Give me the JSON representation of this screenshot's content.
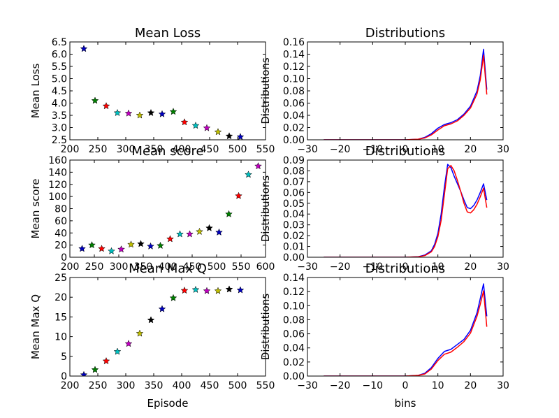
{
  "chart_data": [
    {
      "type": "scatter",
      "title": "Mean Loss",
      "xlabel": "",
      "ylabel": "Mean Loss",
      "xlim": [
        200,
        550
      ],
      "ylim": [
        2.5,
        6.5
      ],
      "xticks": [
        200,
        250,
        300,
        350,
        400,
        450,
        500,
        550
      ],
      "yticks": [
        2.5,
        3.0,
        3.5,
        4.0,
        4.5,
        5.0,
        5.5,
        6.0,
        6.5
      ],
      "ytick_decimals": 1,
      "marker": "star",
      "points": [
        {
          "x": 225,
          "y": 6.22,
          "color": "#0000bf"
        },
        {
          "x": 245,
          "y": 4.1,
          "color": "#007f00"
        },
        {
          "x": 265,
          "y": 3.88,
          "color": "#ff0000"
        },
        {
          "x": 285,
          "y": 3.6,
          "color": "#00bfbf"
        },
        {
          "x": 305,
          "y": 3.58,
          "color": "#bf00bf"
        },
        {
          "x": 325,
          "y": 3.5,
          "color": "#bfbf00"
        },
        {
          "x": 345,
          "y": 3.6,
          "color": "#000000"
        },
        {
          "x": 365,
          "y": 3.55,
          "color": "#0000bf"
        },
        {
          "x": 385,
          "y": 3.65,
          "color": "#007f00"
        },
        {
          "x": 405,
          "y": 3.22,
          "color": "#ff0000"
        },
        {
          "x": 425,
          "y": 3.08,
          "color": "#00bfbf"
        },
        {
          "x": 445,
          "y": 2.98,
          "color": "#bf00bf"
        },
        {
          "x": 465,
          "y": 2.82,
          "color": "#bfbf00"
        },
        {
          "x": 485,
          "y": 2.65,
          "color": "#000000"
        },
        {
          "x": 505,
          "y": 2.62,
          "color": "#0000bf"
        }
      ]
    },
    {
      "type": "line",
      "title": "Distributions",
      "xlabel": "",
      "ylabel": "Distributions",
      "xlim": [
        -30,
        30
      ],
      "ylim": [
        0,
        0.16
      ],
      "xticks": [
        -30,
        -20,
        -10,
        0,
        10,
        20,
        30
      ],
      "yticks": [
        0,
        0.02,
        0.04,
        0.06,
        0.08,
        0.1,
        0.12,
        0.14,
        0.16
      ],
      "ytick_decimals": 2,
      "series": [
        {
          "color": "#0000ff",
          "x": [
            -25,
            0,
            4,
            6,
            8,
            10,
            12,
            14,
            16,
            18,
            20,
            22,
            23,
            24,
            25
          ],
          "y": [
            0,
            0,
            0.001,
            0.004,
            0.01,
            0.019,
            0.025,
            0.028,
            0.033,
            0.042,
            0.055,
            0.08,
            0.105,
            0.148,
            0.082
          ]
        },
        {
          "color": "#ff0000",
          "x": [
            -25,
            0,
            4,
            6,
            8,
            10,
            12,
            14,
            16,
            18,
            20,
            22,
            23,
            24,
            25
          ],
          "y": [
            0,
            0,
            0.001,
            0.003,
            0.008,
            0.016,
            0.023,
            0.026,
            0.031,
            0.04,
            0.052,
            0.075,
            0.098,
            0.138,
            0.074
          ]
        }
      ]
    },
    {
      "type": "scatter",
      "title": "Mean score",
      "xlabel": "",
      "ylabel": "Mean score",
      "xlim": [
        200,
        600
      ],
      "ylim": [
        0,
        160
      ],
      "xticks": [
        200,
        250,
        300,
        350,
        400,
        450,
        500,
        550,
        600
      ],
      "yticks": [
        0,
        20,
        40,
        60,
        80,
        100,
        120,
        140,
        160
      ],
      "ytick_decimals": 0,
      "marker": "star",
      "points": [
        {
          "x": 225,
          "y": 14,
          "color": "#0000bf"
        },
        {
          "x": 245,
          "y": 20,
          "color": "#007f00"
        },
        {
          "x": 265,
          "y": 14,
          "color": "#ff0000"
        },
        {
          "x": 285,
          "y": 10,
          "color": "#00bfbf"
        },
        {
          "x": 305,
          "y": 13,
          "color": "#bf00bf"
        },
        {
          "x": 325,
          "y": 21,
          "color": "#bfbf00"
        },
        {
          "x": 345,
          "y": 22,
          "color": "#000000"
        },
        {
          "x": 365,
          "y": 18,
          "color": "#0000bf"
        },
        {
          "x": 385,
          "y": 19,
          "color": "#007f00"
        },
        {
          "x": 405,
          "y": 30,
          "color": "#ff0000"
        },
        {
          "x": 425,
          "y": 38,
          "color": "#00bfbf"
        },
        {
          "x": 445,
          "y": 38,
          "color": "#bf00bf"
        },
        {
          "x": 465,
          "y": 42,
          "color": "#bfbf00"
        },
        {
          "x": 485,
          "y": 48,
          "color": "#000000"
        },
        {
          "x": 505,
          "y": 41,
          "color": "#0000bf"
        },
        {
          "x": 525,
          "y": 71,
          "color": "#007f00"
        },
        {
          "x": 545,
          "y": 101,
          "color": "#ff0000"
        },
        {
          "x": 565,
          "y": 136,
          "color": "#00bfbf"
        },
        {
          "x": 585,
          "y": 150,
          "color": "#bf00bf"
        }
      ]
    },
    {
      "type": "line",
      "title": "Distributions",
      "xlabel": "",
      "ylabel": "Distributions",
      "xlim": [
        -30,
        30
      ],
      "ylim": [
        0,
        0.09
      ],
      "xticks": [
        -30,
        -20,
        -10,
        0,
        10,
        20,
        30
      ],
      "yticks": [
        0,
        0.01,
        0.02,
        0.03,
        0.04,
        0.05,
        0.06,
        0.07,
        0.08,
        0.09
      ],
      "ytick_decimals": 2,
      "series": [
        {
          "color": "#0000ff",
          "x": [
            -25,
            0,
            4,
            6,
            8,
            9,
            10,
            11,
            12,
            13,
            14,
            15,
            16,
            17,
            18,
            19,
            20,
            21,
            22,
            23,
            24,
            25
          ],
          "y": [
            0,
            0,
            0.0005,
            0.002,
            0.006,
            0.012,
            0.022,
            0.04,
            0.065,
            0.086,
            0.083,
            0.075,
            0.068,
            0.061,
            0.053,
            0.046,
            0.045,
            0.048,
            0.053,
            0.06,
            0.068,
            0.053
          ]
        },
        {
          "color": "#ff0000",
          "x": [
            -25,
            0,
            4,
            6,
            8,
            9,
            10,
            11,
            12,
            13,
            14,
            15,
            16,
            17,
            18,
            19,
            20,
            21,
            22,
            23,
            24,
            25
          ],
          "y": [
            0,
            0,
            0.0004,
            0.0015,
            0.005,
            0.01,
            0.019,
            0.034,
            0.058,
            0.082,
            0.085,
            0.08,
            0.071,
            0.061,
            0.05,
            0.042,
            0.041,
            0.044,
            0.049,
            0.056,
            0.064,
            0.046
          ]
        }
      ]
    },
    {
      "type": "scatter",
      "title": "Mean Max Q",
      "xlabel": "Episode",
      "ylabel": "Mean Max Q",
      "xlim": [
        200,
        550
      ],
      "ylim": [
        0,
        25
      ],
      "xticks": [
        200,
        250,
        300,
        350,
        400,
        450,
        500,
        550
      ],
      "yticks": [
        0,
        5,
        10,
        15,
        20,
        25
      ],
      "ytick_decimals": 0,
      "marker": "star",
      "points": [
        {
          "x": 225,
          "y": 0.3,
          "color": "#0000bf"
        },
        {
          "x": 245,
          "y": 1.6,
          "color": "#007f00"
        },
        {
          "x": 265,
          "y": 3.8,
          "color": "#ff0000"
        },
        {
          "x": 285,
          "y": 6.2,
          "color": "#00bfbf"
        },
        {
          "x": 305,
          "y": 8.2,
          "color": "#bf00bf"
        },
        {
          "x": 325,
          "y": 10.8,
          "color": "#bfbf00"
        },
        {
          "x": 345,
          "y": 14.2,
          "color": "#000000"
        },
        {
          "x": 365,
          "y": 17.0,
          "color": "#0000bf"
        },
        {
          "x": 385,
          "y": 19.8,
          "color": "#007f00"
        },
        {
          "x": 405,
          "y": 21.7,
          "color": "#ff0000"
        },
        {
          "x": 425,
          "y": 21.9,
          "color": "#00bfbf"
        },
        {
          "x": 445,
          "y": 21.6,
          "color": "#bf00bf"
        },
        {
          "x": 465,
          "y": 21.6,
          "color": "#bfbf00"
        },
        {
          "x": 485,
          "y": 22.0,
          "color": "#000000"
        },
        {
          "x": 505,
          "y": 21.8,
          "color": "#0000bf"
        }
      ]
    },
    {
      "type": "line",
      "title": "Distributions",
      "xlabel": "bins",
      "ylabel": "Distributions",
      "xlim": [
        -30,
        30
      ],
      "ylim": [
        0,
        0.14
      ],
      "xticks": [
        -30,
        -20,
        -10,
        0,
        10,
        20,
        30
      ],
      "yticks": [
        0,
        0.02,
        0.04,
        0.06,
        0.08,
        0.1,
        0.12,
        0.14
      ],
      "ytick_decimals": 2,
      "series": [
        {
          "color": "#0000ff",
          "x": [
            -25,
            0,
            4,
            6,
            8,
            10,
            12,
            14,
            16,
            18,
            20,
            22,
            23,
            24,
            25
          ],
          "y": [
            0,
            0,
            0.001,
            0.004,
            0.012,
            0.025,
            0.035,
            0.038,
            0.045,
            0.052,
            0.065,
            0.09,
            0.11,
            0.131,
            0.085
          ]
        },
        {
          "color": "#ff0000",
          "x": [
            -25,
            0,
            4,
            6,
            8,
            10,
            12,
            14,
            16,
            18,
            20,
            22,
            23,
            24,
            25
          ],
          "y": [
            0,
            0,
            0.001,
            0.003,
            0.01,
            0.022,
            0.031,
            0.034,
            0.041,
            0.049,
            0.061,
            0.085,
            0.102,
            0.121,
            0.07
          ]
        }
      ]
    }
  ]
}
